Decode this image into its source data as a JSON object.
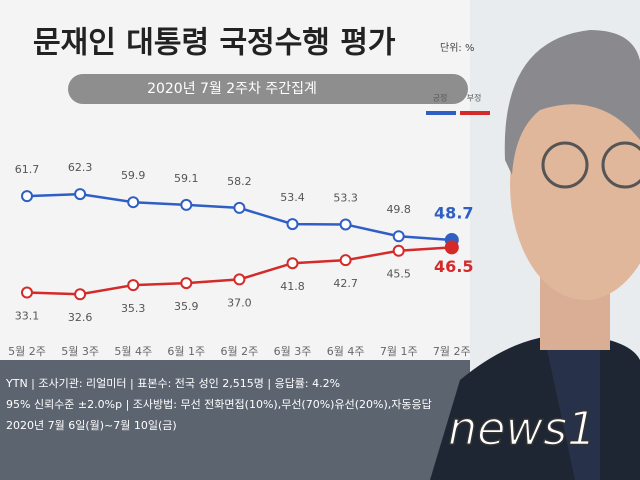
{
  "chart_data": {
    "type": "line",
    "title": "문재인 대통령 국정수행 평가",
    "unit_note": "단위: %",
    "subtitle": "2020년 7월 2주차 주간집계",
    "categories": [
      "5월 2주",
      "5월 3주",
      "5월 4주",
      "6월 1주",
      "6월 2주",
      "6월 3주",
      "6월 4주",
      "7월 1주",
      "7월 2주"
    ],
    "series": [
      {
        "name": "긍정",
        "color": "#2f5fc4",
        "values": [
          61.7,
          62.3,
          59.9,
          59.1,
          58.2,
          53.4,
          53.3,
          49.8,
          48.7
        ],
        "value_labels": [
          "61.7",
          "62.3",
          "59.9",
          "59.1",
          "58.2",
          "53.4",
          "53.3",
          "49.8",
          "48.7"
        ]
      },
      {
        "name": "부정",
        "color": "#d42a2a",
        "values": [
          33.1,
          32.6,
          35.3,
          35.9,
          37.0,
          41.8,
          42.7,
          45.5,
          46.5
        ],
        "value_labels": [
          "33.1",
          "32.6",
          "35.3",
          "35.9",
          "37.0",
          "41.8",
          "42.7",
          "45.5",
          "46.5"
        ]
      }
    ],
    "ylim": [
      30,
      65
    ],
    "legend": "upper right",
    "footnotes": [
      "YTN  |  조사기관: 리얼미터  |  표본수: 전국 성인 2,515명  |  응답률: 4.2%",
      "95% 신뢰수준 ±2.0%p  |  조사방법: 무선 전화면접(10%),무선(70%)유선(20%),자동응답",
      "2020년 7월 6일(월)~7월 10일(금)"
    ],
    "watermark": "news1"
  }
}
